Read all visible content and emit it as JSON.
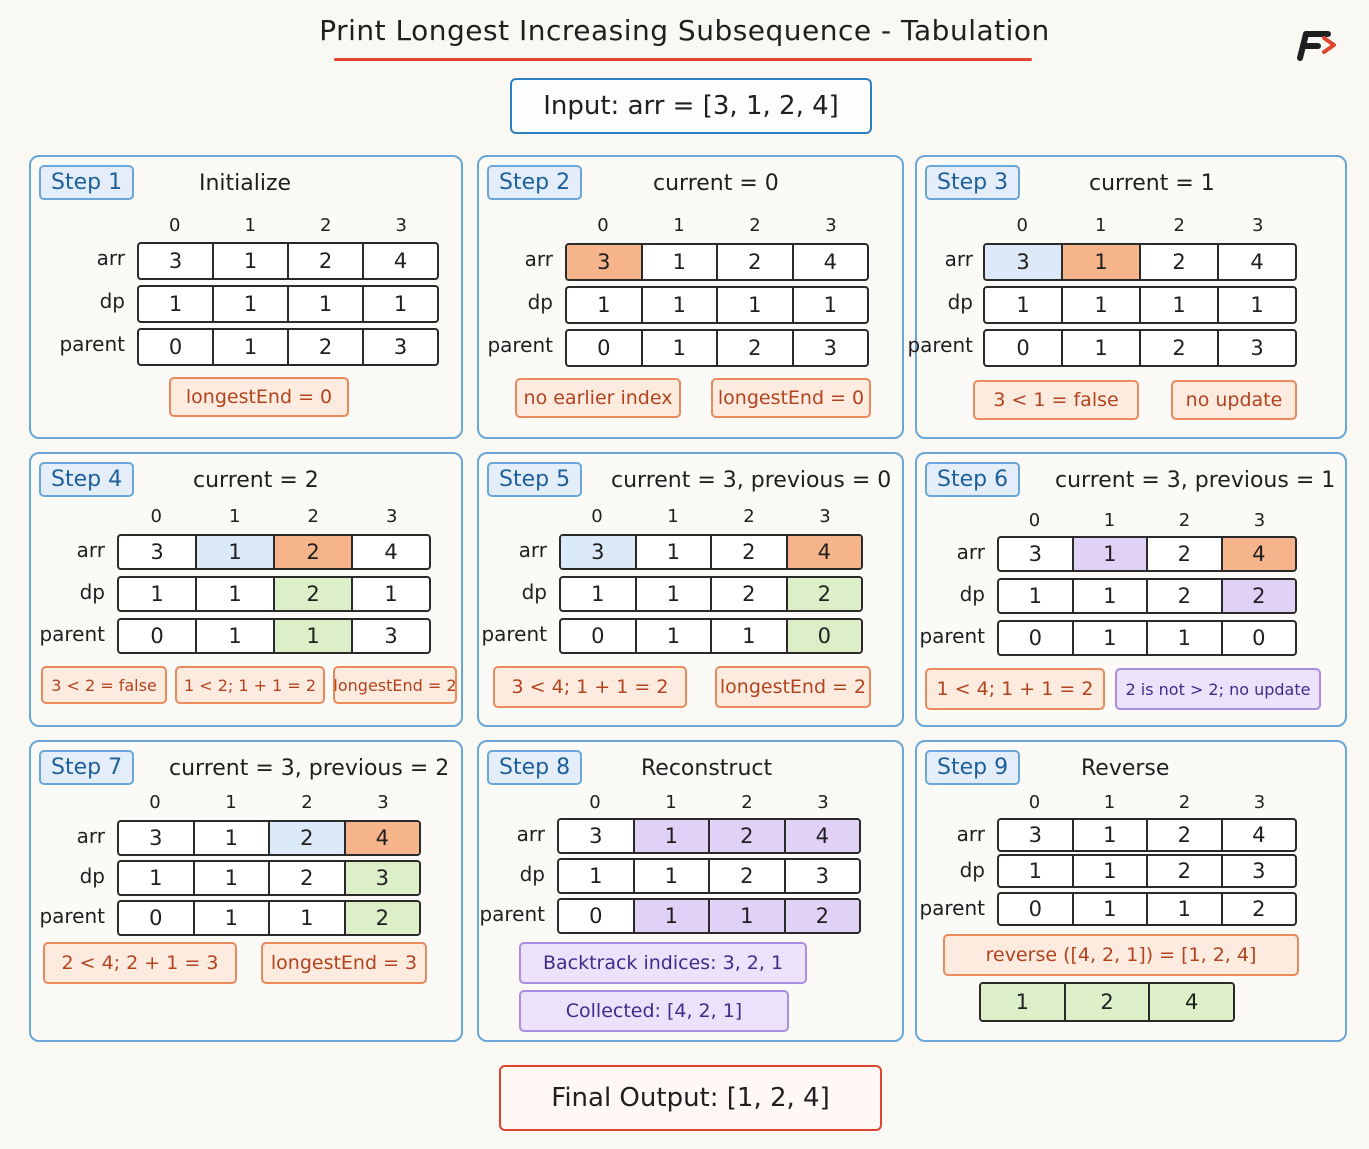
{
  "title": "Print Longest Increasing Subsequence - Tabulation",
  "input": "Input:  arr = [3, 1, 2, 4]",
  "final_output": "Final Output:  [1, 2, 4]",
  "indices": [
    "0",
    "1",
    "2",
    "3"
  ],
  "labels": {
    "arr": "arr",
    "dp": "dp",
    "parent": "parent"
  },
  "colors": {
    "panel_border": "#6aa6d8",
    "current": "#f6b48a",
    "previous": "#dbe9f8",
    "updated": "#dcefc8",
    "path": "#e0d2f6",
    "title_underline": "#e0452f"
  },
  "steps": [
    {
      "badge": "Step 1",
      "heading": "Initialize",
      "arr": [
        "3",
        "1",
        "2",
        "4"
      ],
      "dp": [
        "1",
        "1",
        "1",
        "1"
      ],
      "parent": [
        "0",
        "1",
        "2",
        "3"
      ],
      "tags": [
        {
          "text": "longestEnd  =  0",
          "style": "orange"
        }
      ]
    },
    {
      "badge": "Step 2",
      "heading": "current  =  0",
      "arr": [
        "3",
        "1",
        "2",
        "4"
      ],
      "dp": [
        "1",
        "1",
        "1",
        "1"
      ],
      "parent": [
        "0",
        "1",
        "2",
        "3"
      ],
      "tags": [
        {
          "text": "no earlier index",
          "style": "orange"
        },
        {
          "text": "longestEnd  =  0",
          "style": "orange"
        }
      ]
    },
    {
      "badge": "Step 3",
      "heading": "current  =  1",
      "arr": [
        "3",
        "1",
        "2",
        "4"
      ],
      "dp": [
        "1",
        "1",
        "1",
        "1"
      ],
      "parent": [
        "0",
        "1",
        "2",
        "3"
      ],
      "tags": [
        {
          "text": "3 < 1  =  false",
          "style": "orange"
        },
        {
          "text": "no update",
          "style": "orange"
        }
      ]
    },
    {
      "badge": "Step 4",
      "heading": "current  =  2",
      "arr": [
        "3",
        "1",
        "2",
        "4"
      ],
      "dp": [
        "1",
        "1",
        "2",
        "1"
      ],
      "parent": [
        "0",
        "1",
        "1",
        "3"
      ],
      "tags": [
        {
          "text": "3 < 2 = false",
          "style": "orange"
        },
        {
          "text": "1 < 2;  1 + 1 = 2",
          "style": "orange"
        },
        {
          "text": "longestEnd = 2",
          "style": "orange"
        }
      ]
    },
    {
      "badge": "Step 5",
      "heading": "current  =  3,  previous  =  0",
      "arr": [
        "3",
        "1",
        "2",
        "4"
      ],
      "dp": [
        "1",
        "1",
        "2",
        "2"
      ],
      "parent": [
        "0",
        "1",
        "1",
        "0"
      ],
      "tags": [
        {
          "text": "3 < 4;  1 + 1 = 2",
          "style": "orange"
        },
        {
          "text": "longestEnd  =  2",
          "style": "orange"
        }
      ]
    },
    {
      "badge": "Step 6",
      "heading": "current  =  3,  previous  =  1",
      "arr": [
        "3",
        "1",
        "2",
        "4"
      ],
      "dp": [
        "1",
        "1",
        "2",
        "2"
      ],
      "parent": [
        "0",
        "1",
        "1",
        "0"
      ],
      "tags": [
        {
          "text": "1 < 4;  1 + 1  =  2",
          "style": "orange"
        },
        {
          "text": "2  is  not  >  2;  no update",
          "style": "purple"
        }
      ]
    },
    {
      "badge": "Step 7",
      "heading": "current  =  3,  previous  =  2",
      "arr": [
        "3",
        "1",
        "2",
        "4"
      ],
      "dp": [
        "1",
        "1",
        "2",
        "3"
      ],
      "parent": [
        "0",
        "1",
        "1",
        "2"
      ],
      "tags": [
        {
          "text": "2 < 4;  2 + 1 = 3",
          "style": "orange"
        },
        {
          "text": "longestEnd  =  3",
          "style": "orange"
        }
      ]
    },
    {
      "badge": "Step 8",
      "heading": "Reconstruct",
      "arr": [
        "3",
        "1",
        "2",
        "4"
      ],
      "dp": [
        "1",
        "1",
        "2",
        "3"
      ],
      "parent": [
        "0",
        "1",
        "1",
        "2"
      ],
      "tags": [
        {
          "text": "Backtrack  indices:  3,  2,  1",
          "style": "purple"
        },
        {
          "text": "Collected:  [4,  2,  1]",
          "style": "purple"
        }
      ]
    },
    {
      "badge": "Step 9",
      "heading": "Reverse",
      "arr": [
        "3",
        "1",
        "2",
        "4"
      ],
      "dp": [
        "1",
        "1",
        "2",
        "3"
      ],
      "parent": [
        "0",
        "1",
        "1",
        "2"
      ],
      "tags": [
        {
          "text": "reverse ([4,  2,  1])  =  [1,  2,  4]",
          "style": "orange"
        }
      ],
      "result": [
        "1",
        "2",
        "4"
      ]
    }
  ]
}
